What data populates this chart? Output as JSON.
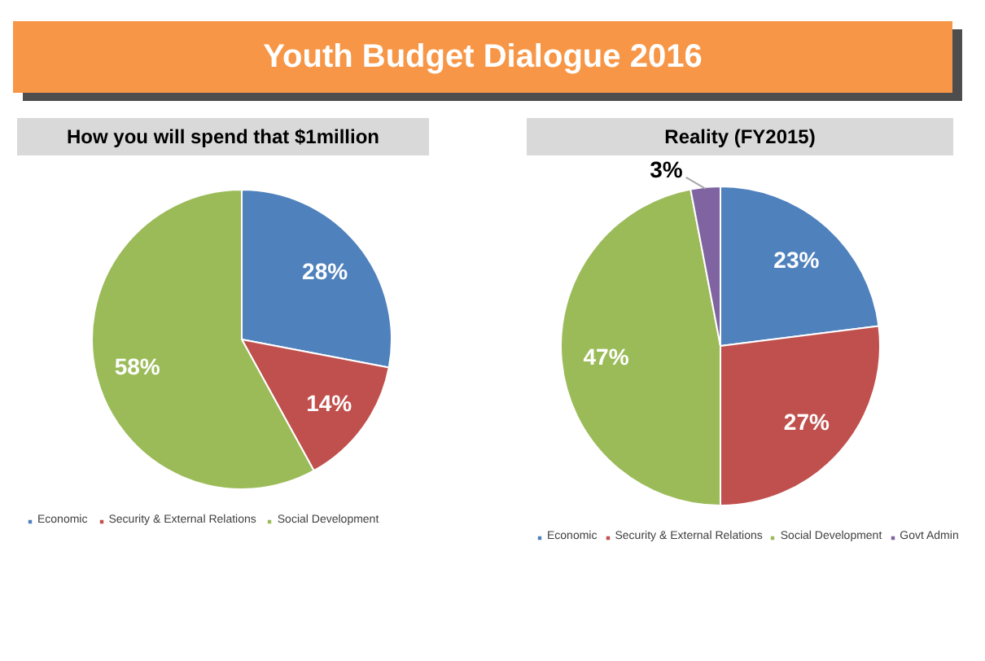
{
  "chart_data": [
    {
      "type": "pie",
      "title": "Youth Budget Dialogue 2016",
      "subtitle": "How you will spend that $1million",
      "categories": [
        "Economic",
        "Security & External Relations",
        "Social Development"
      ],
      "values": [
        28,
        14,
        58
      ],
      "colors": [
        "#4f81bd",
        "#c0504d",
        "#9bbb59"
      ],
      "value_labels": [
        "28%",
        "14%",
        "58%"
      ],
      "legend": "bottom"
    },
    {
      "type": "pie",
      "title": "Reality (FY2015)",
      "categories": [
        "Economic",
        "Security & External Relations",
        "Social Development",
        "Govt Admin"
      ],
      "values": [
        23,
        27,
        47,
        3
      ],
      "colors": [
        "#4f81bd",
        "#c0504d",
        "#9bbb59",
        "#8064a2"
      ],
      "value_labels": [
        "23%",
        "27%",
        "47%",
        "3%"
      ],
      "legend": "bottom"
    }
  ]
}
